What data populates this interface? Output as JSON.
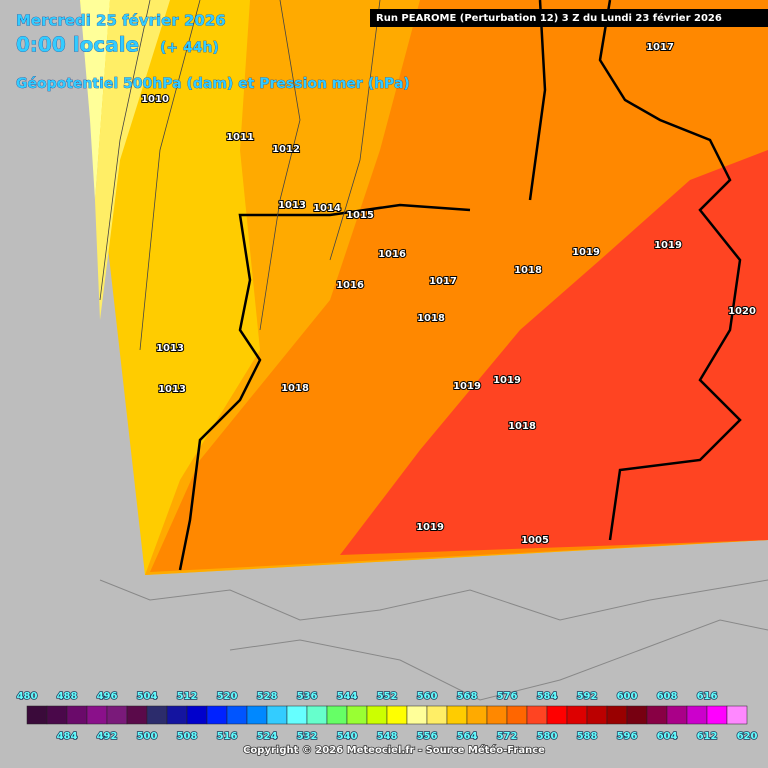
{
  "header": {
    "date": "Mercredi 25 février 2026",
    "time": "0:00 locale",
    "lead": "(+ 44h)",
    "field": "Géopotentiel 500hPa (dam) et Pression mer (hPa)",
    "run": "Run PEAROME (Perturbation 12) 3 Z du Lundi 23 février 2026"
  },
  "isobar_labels": [
    "1010",
    "1011",
    "1012",
    "1013",
    "1014",
    "1015",
    "1016",
    "1016",
    "1017",
    "1017",
    "1018",
    "1018",
    "1019",
    "1019",
    "1020",
    "1013",
    "1013",
    "1018",
    "1019",
    "1019",
    "1018",
    "1019",
    "1005"
  ],
  "legend": {
    "values": [
      480,
      484,
      488,
      492,
      496,
      500,
      504,
      508,
      512,
      516,
      520,
      524,
      528,
      532,
      536,
      540,
      544,
      548,
      552,
      556,
      560,
      564,
      568,
      572,
      576,
      580,
      584,
      588,
      592,
      596,
      600,
      604,
      608,
      612,
      616,
      620
    ],
    "colors": [
      "#3a0a3a",
      "#4a084a",
      "#6a0a6a",
      "#8a108a",
      "#7a1a7a",
      "#5a0a4a",
      "#2c2c6c",
      "#1414a0",
      "#0000cc",
      "#0022ff",
      "#0055ff",
      "#0088ff",
      "#33ccff",
      "#66ffff",
      "#66ffcc",
      "#66ff66",
      "#99ff33",
      "#ccff00",
      "#ffff00",
      "#ffff99",
      "#ffee66",
      "#ffcc00",
      "#ffaa00",
      "#ff8800",
      "#ff6600",
      "#ff4422",
      "#ff0000",
      "#dd0000",
      "#bb0000",
      "#990000",
      "#770011",
      "#880044",
      "#aa0088",
      "#cc00cc",
      "#ff00ff",
      "#ff88ff"
    ]
  },
  "footer": "Copyright © 2026 Meteociel.fr - Source Météo-France"
}
